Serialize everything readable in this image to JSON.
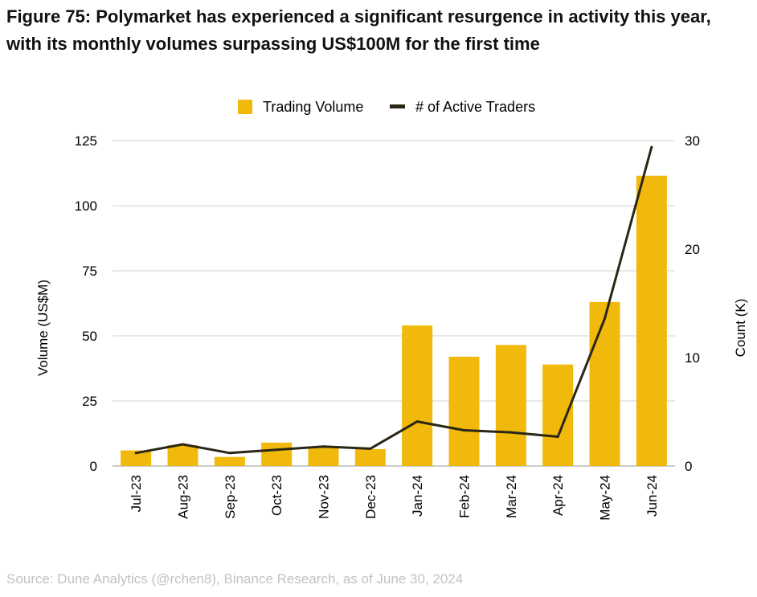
{
  "title": {
    "line1": "Figure 75: Polymarket has experienced a significant resurgence in activity this year,",
    "line2": "with its monthly volumes surpassing US$100M for the first time"
  },
  "source": "Source: Dune Analytics (@rchen8), Binance Research, as of June 30, 2024",
  "colors": {
    "bar": "#F0B90B",
    "line": "#2B2616",
    "grid": "#D0D0D0",
    "axis_text": "#000000",
    "source_text": "#C2C2C2"
  },
  "chart_data": {
    "type": "bar",
    "categories": [
      "Jul-23",
      "Aug-23",
      "Sep-23",
      "Oct-23",
      "Nov-23",
      "Dec-23",
      "Jan-24",
      "Feb-24",
      "Mar-24",
      "Apr-24",
      "May-24",
      "Jun-24"
    ],
    "series": [
      {
        "name": "Trading Volume",
        "type": "bar",
        "axis": "left",
        "values": [
          6,
          8,
          3.5,
          9,
          7.5,
          6.5,
          54,
          42,
          46.5,
          39,
          63,
          111.5
        ]
      },
      {
        "name": "# of Active Traders",
        "type": "line",
        "axis": "right",
        "values": [
          1.2,
          2.0,
          1.2,
          1.5,
          1.8,
          1.6,
          4.1,
          3.3,
          3.1,
          2.7,
          13.6,
          29.4
        ]
      }
    ],
    "ylabel": "Volume (US$M)",
    "y2label": "Count (K)",
    "ylim": [
      0,
      125
    ],
    "y2lim": [
      0,
      30
    ],
    "yticks": [
      "0",
      "25",
      "50",
      "75",
      "100",
      "125"
    ],
    "y2ticks": [
      "0",
      "10",
      "20",
      "30"
    ],
    "grid": true,
    "legend_position": "top-center"
  }
}
